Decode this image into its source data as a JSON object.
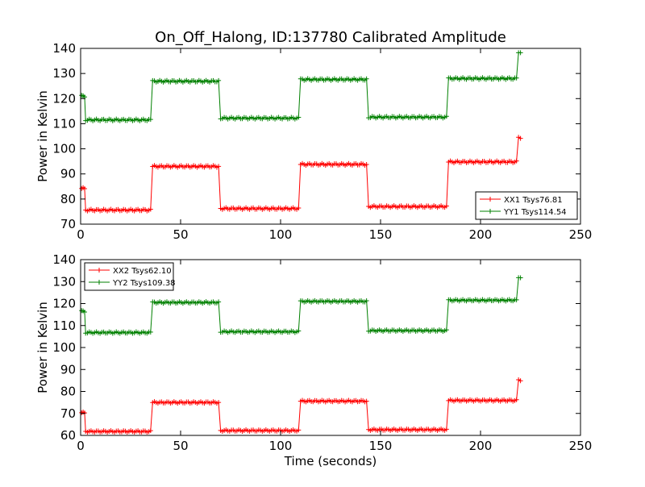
{
  "title": "On_Off_Halong, ID:137780 Calibrated Amplitude",
  "colors": {
    "xx": "#ff0000",
    "yy": "#008000"
  },
  "chart_data": [
    {
      "type": "line",
      "ylabel": "Power in Kelvin",
      "xlabel": "",
      "xlim": [
        0,
        250
      ],
      "ylim": [
        70,
        140
      ],
      "xticks": [
        0,
        50,
        100,
        150,
        200,
        250
      ],
      "yticks": [
        70,
        80,
        90,
        100,
        110,
        120,
        130,
        140
      ],
      "legend_position": "lower-right",
      "series": [
        {
          "name": "XX1 Tsys76.81",
          "color": "#ff0000",
          "marker": "+",
          "segments": [
            {
              "x0": 0.5,
              "x1": 2.0,
              "y": 84.2
            },
            {
              "x0": 2.5,
              "x1": 35,
              "y": 75.6
            },
            {
              "x0": 36,
              "x1": 69,
              "y": 93.0
            },
            {
              "x0": 70,
              "x1": 109,
              "y": 76.2
            },
            {
              "x0": 110,
              "x1": 143,
              "y": 93.8
            },
            {
              "x0": 144,
              "x1": 183,
              "y": 77.0
            },
            {
              "x0": 184,
              "x1": 218,
              "y": 94.8
            },
            {
              "x0": 219,
              "x1": 220,
              "y": 104.5
            }
          ]
        },
        {
          "name": "YY1 Tsys114.54",
          "color": "#008000",
          "marker": "+",
          "segments": [
            {
              "x0": 0.5,
              "x1": 2.0,
              "y": 121.0
            },
            {
              "x0": 2.5,
              "x1": 35,
              "y": 111.5
            },
            {
              "x0": 36,
              "x1": 69,
              "y": 126.9
            },
            {
              "x0": 70,
              "x1": 109,
              "y": 112.2
            },
            {
              "x0": 110,
              "x1": 143,
              "y": 127.6
            },
            {
              "x0": 144,
              "x1": 183,
              "y": 112.6
            },
            {
              "x0": 184,
              "x1": 218,
              "y": 128.0
            },
            {
              "x0": 219,
              "x1": 220,
              "y": 138.5
            }
          ]
        }
      ]
    },
    {
      "type": "line",
      "ylabel": "Power in Kelvin",
      "xlabel": "Time (seconds)",
      "xlim": [
        0,
        250
      ],
      "ylim": [
        60,
        140
      ],
      "xticks": [
        0,
        50,
        100,
        150,
        200,
        250
      ],
      "yticks": [
        60,
        70,
        80,
        90,
        100,
        110,
        120,
        130,
        140
      ],
      "legend_position": "upper-left",
      "series": [
        {
          "name": "XX2 Tsys62.10",
          "color": "#ff0000",
          "marker": "+",
          "segments": [
            {
              "x0": 0.5,
              "x1": 2.0,
              "y": 70.3
            },
            {
              "x0": 2.5,
              "x1": 35,
              "y": 61.8
            },
            {
              "x0": 36,
              "x1": 69,
              "y": 75.0
            },
            {
              "x0": 70,
              "x1": 109,
              "y": 62.2
            },
            {
              "x0": 110,
              "x1": 143,
              "y": 75.6
            },
            {
              "x0": 144,
              "x1": 183,
              "y": 62.6
            },
            {
              "x0": 184,
              "x1": 218,
              "y": 75.9
            },
            {
              "x0": 219,
              "x1": 220,
              "y": 85.2
            }
          ]
        },
        {
          "name": "YY2 Tsys109.38",
          "color": "#008000",
          "marker": "+",
          "segments": [
            {
              "x0": 0.5,
              "x1": 2.0,
              "y": 116.5
            },
            {
              "x0": 2.5,
              "x1": 35,
              "y": 106.8
            },
            {
              "x0": 36,
              "x1": 69,
              "y": 120.5
            },
            {
              "x0": 70,
              "x1": 109,
              "y": 107.2
            },
            {
              "x0": 110,
              "x1": 143,
              "y": 121.0
            },
            {
              "x0": 144,
              "x1": 183,
              "y": 107.7
            },
            {
              "x0": 184,
              "x1": 218,
              "y": 121.5
            },
            {
              "x0": 219,
              "x1": 220,
              "y": 132.0
            }
          ]
        }
      ]
    }
  ]
}
